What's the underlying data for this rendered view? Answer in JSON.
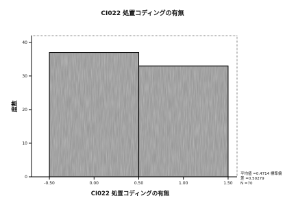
{
  "chart_data": {
    "type": "bar",
    "title": "CI022 処置コディングの有無",
    "xlabel": "CI022 処置コディングの有無",
    "ylabel": "度数",
    "bins": [
      {
        "x0": -0.5,
        "x1": 0.5,
        "value": 37
      },
      {
        "x0": 0.5,
        "x1": 1.5,
        "value": 33
      }
    ],
    "xlim": [
      -0.7,
      1.6
    ],
    "ylim": [
      0,
      42
    ],
    "xticks": [
      "-0.50",
      "0.00",
      "0.50",
      "1.00",
      "1.50"
    ],
    "yticks": [
      "0",
      "10",
      "20",
      "30",
      "40"
    ],
    "grid": false,
    "fill": "#9a9a9a",
    "stats": [
      "平均値 =0.4714 標準偏",
      "差 =0.50279",
      "N =70"
    ]
  }
}
